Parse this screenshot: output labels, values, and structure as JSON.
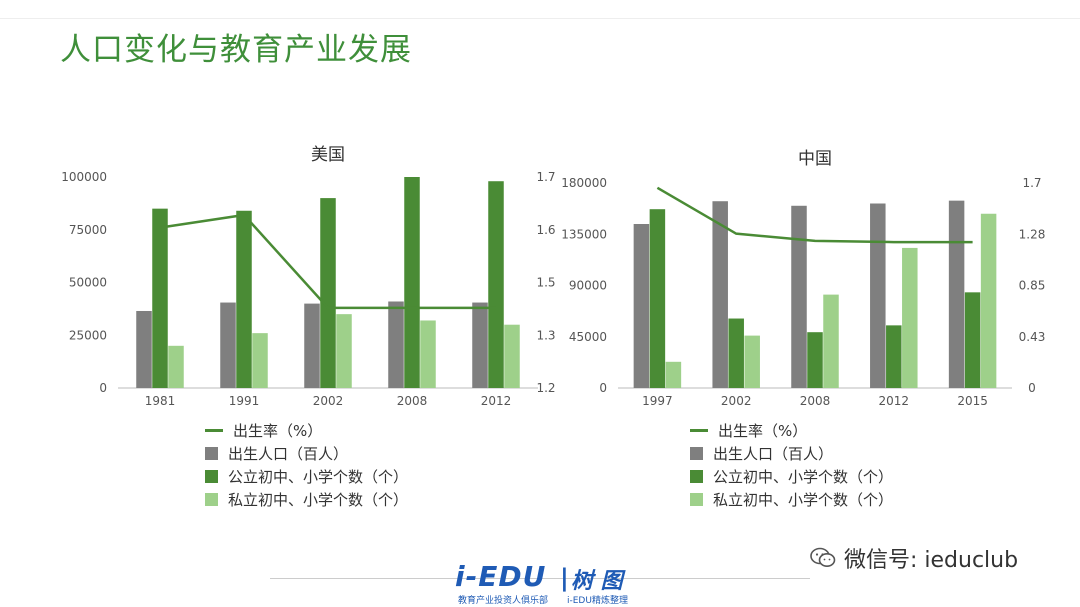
{
  "page_title": "人口变化与教育产业发展",
  "chart_data": [
    {
      "type": "bar",
      "title": "美国",
      "categories": [
        "1981",
        "1991",
        "2002",
        "2008",
        "2012"
      ],
      "y_left": {
        "ticks": [
          "0",
          "25000",
          "50000",
          "75000",
          "100000"
        ],
        "range": [
          0,
          100000
        ]
      },
      "y_right": {
        "ticks": [
          "1.2",
          "1.3",
          "1.5",
          "1.6",
          "1.7"
        ],
        "range": [
          1.2,
          1.7
        ]
      },
      "series": [
        {
          "name": "出生人口（百人）",
          "kind": "bar",
          "color": "#7f7f7f",
          "values": [
            36500,
            40500,
            40000,
            41000,
            40500
          ]
        },
        {
          "name": "公立初中、小学个数（个）",
          "kind": "bar",
          "color": "#4a8b35",
          "values": [
            85000,
            84000,
            90000,
            100000,
            98000
          ]
        },
        {
          "name": "私立初中、小学个数（个）",
          "kind": "bar",
          "color": "#9ed08a",
          "values": [
            20000,
            26000,
            35000,
            32000,
            30000
          ]
        },
        {
          "name": "出生率（%）",
          "kind": "line",
          "axis": "right",
          "color": "#4a8b35",
          "values": [
            1.58,
            1.61,
            1.39,
            1.39,
            1.39
          ]
        }
      ],
      "legend": [
        "出生率（%）",
        "出生人口（百人）",
        "公立初中、小学个数（个）",
        "私立初中、小学个数（个）"
      ]
    },
    {
      "type": "bar",
      "title": "中国",
      "categories": [
        "1997",
        "2002",
        "2008",
        "2012",
        "2015"
      ],
      "y_left": {
        "ticks": [
          "0",
          "45000",
          "90000",
          "135000",
          "180000"
        ],
        "range": [
          0,
          180000
        ]
      },
      "y_right": {
        "ticks": [
          "0",
          "0.43",
          "0.85",
          "1.28",
          "1.7"
        ],
        "range": [
          0,
          1.7
        ]
      },
      "series": [
        {
          "name": "出生人口（百人）",
          "kind": "bar",
          "color": "#7f7f7f",
          "values": [
            144000,
            164000,
            160000,
            162000,
            164500
          ]
        },
        {
          "name": "公立初中、小学个数（个）",
          "kind": "bar",
          "color": "#4a8b35",
          "values": [
            157000,
            61000,
            49000,
            55000,
            84000
          ]
        },
        {
          "name": "私立初中、小学个数（个）",
          "kind": "bar",
          "color": "#9ed08a",
          "values": [
            23000,
            46000,
            82000,
            123000,
            153000
          ]
        },
        {
          "name": "出生率（%）",
          "kind": "line",
          "axis": "right",
          "color": "#4a8b35",
          "values": [
            1.66,
            1.28,
            1.22,
            1.21,
            1.21
          ]
        }
      ],
      "legend": [
        "出生率（%）",
        "出生人口（百人）",
        "公立初中、小学个数（个）",
        "私立初中、小学个数（个）"
      ]
    }
  ],
  "footer": {
    "logo_main": "i-EDU",
    "logo_sep": "|",
    "logo_zh": "树 图",
    "logo_sub": "教育产业投资人俱乐部",
    "logo_sub2": "i-EDU精炼整理",
    "wechat_label": "微信号: ieduclub"
  }
}
